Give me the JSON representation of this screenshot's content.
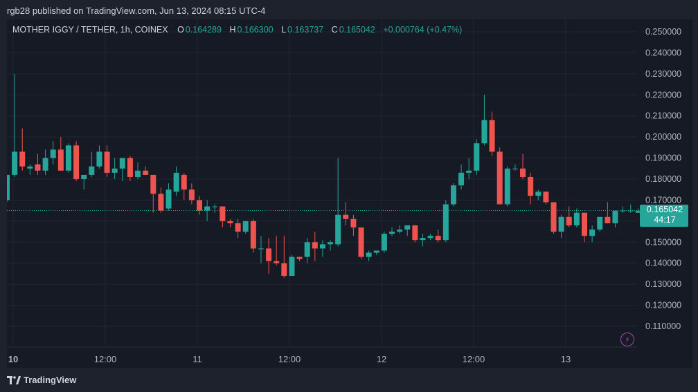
{
  "header": {
    "publisher_text": "rgb28 published on TradingView.com, Jun 13, 2024 08:15 UTC-4"
  },
  "legend": {
    "symbol": "MOTHER IGGY / TETHER, 1h, COINEX",
    "open_label": "O",
    "open": "0.164289",
    "high_label": "H",
    "high": "0.166300",
    "low_label": "L",
    "low": "0.163737",
    "close_label": "C",
    "close": "0.165042",
    "change": "+0.000764 (+0.47%)"
  },
  "price_tag": {
    "price": "0.165042",
    "countdown": "44:17"
  },
  "footer": {
    "brand": "TradingView"
  },
  "colors": {
    "up": "#26a69a",
    "down": "#ef5350",
    "background": "#161a25",
    "grid": "#232734",
    "text": "#d1d4dc",
    "accent": "#ab47bc"
  },
  "icons": {
    "alert": "lightning-bolt-icon",
    "logo": "tradingview-logo-icon"
  },
  "chart_data": {
    "type": "candlestick",
    "title": "MOTHER IGGY / TETHER, 1h, COINEX",
    "ylim": [
      0.1,
      0.255
    ],
    "y_ticks": [
      "0.250000",
      "0.240000",
      "0.230000",
      "0.220000",
      "0.210000",
      "0.200000",
      "0.190000",
      "0.180000",
      "0.170000",
      "0.160000",
      "0.150000",
      "0.140000",
      "0.130000",
      "0.120000",
      "0.110000"
    ],
    "x_ticks": [
      "10",
      "12:00",
      "11",
      "12:00",
      "12",
      "12:00",
      "13"
    ],
    "grid": true,
    "last_price": 0.165042,
    "candles": [
      {
        "o": 0.17,
        "h": 0.182,
        "l": 0.169,
        "c": 0.182
      },
      {
        "o": 0.182,
        "h": 0.23,
        "l": 0.181,
        "c": 0.193
      },
      {
        "o": 0.193,
        "h": 0.204,
        "l": 0.184,
        "c": 0.186
      },
      {
        "o": 0.185,
        "h": 0.187,
        "l": 0.182,
        "c": 0.186
      },
      {
        "o": 0.187,
        "h": 0.192,
        "l": 0.182,
        "c": 0.184
      },
      {
        "o": 0.184,
        "h": 0.194,
        "l": 0.182,
        "c": 0.19
      },
      {
        "o": 0.19,
        "h": 0.198,
        "l": 0.187,
        "c": 0.194
      },
      {
        "o": 0.194,
        "h": 0.2,
        "l": 0.184,
        "c": 0.184
      },
      {
        "o": 0.184,
        "h": 0.197,
        "l": 0.183,
        "c": 0.196
      },
      {
        "o": 0.196,
        "h": 0.198,
        "l": 0.179,
        "c": 0.18
      },
      {
        "o": 0.18,
        "h": 0.182,
        "l": 0.175,
        "c": 0.182
      },
      {
        "o": 0.182,
        "h": 0.193,
        "l": 0.181,
        "c": 0.186
      },
      {
        "o": 0.186,
        "h": 0.196,
        "l": 0.185,
        "c": 0.193
      },
      {
        "o": 0.193,
        "h": 0.196,
        "l": 0.181,
        "c": 0.183
      },
      {
        "o": 0.183,
        "h": 0.19,
        "l": 0.18,
        "c": 0.185
      },
      {
        "o": 0.185,
        "h": 0.19,
        "l": 0.179,
        "c": 0.19
      },
      {
        "o": 0.19,
        "h": 0.191,
        "l": 0.179,
        "c": 0.181
      },
      {
        "o": 0.181,
        "h": 0.188,
        "l": 0.18,
        "c": 0.184
      },
      {
        "o": 0.184,
        "h": 0.186,
        "l": 0.182,
        "c": 0.182
      },
      {
        "o": 0.182,
        "h": 0.182,
        "l": 0.164,
        "c": 0.173
      },
      {
        "o": 0.173,
        "h": 0.176,
        "l": 0.164,
        "c": 0.165
      },
      {
        "o": 0.166,
        "h": 0.178,
        "l": 0.165,
        "c": 0.175
      },
      {
        "o": 0.174,
        "h": 0.186,
        "l": 0.172,
        "c": 0.183
      },
      {
        "o": 0.182,
        "h": 0.183,
        "l": 0.17,
        "c": 0.175
      },
      {
        "o": 0.175,
        "h": 0.178,
        "l": 0.168,
        "c": 0.17
      },
      {
        "o": 0.17,
        "h": 0.172,
        "l": 0.163,
        "c": 0.165
      },
      {
        "o": 0.165,
        "h": 0.17,
        "l": 0.16,
        "c": 0.167
      },
      {
        "o": 0.167,
        "h": 0.168,
        "l": 0.164,
        "c": 0.167
      },
      {
        "o": 0.167,
        "h": 0.167,
        "l": 0.157,
        "c": 0.16
      },
      {
        "o": 0.16,
        "h": 0.161,
        "l": 0.157,
        "c": 0.159
      },
      {
        "o": 0.159,
        "h": 0.161,
        "l": 0.152,
        "c": 0.155
      },
      {
        "o": 0.155,
        "h": 0.16,
        "l": 0.154,
        "c": 0.16
      },
      {
        "o": 0.16,
        "h": 0.161,
        "l": 0.145,
        "c": 0.147
      },
      {
        "o": 0.147,
        "h": 0.153,
        "l": 0.14,
        "c": 0.147
      },
      {
        "o": 0.147,
        "h": 0.152,
        "l": 0.135,
        "c": 0.141
      },
      {
        "o": 0.141,
        "h": 0.153,
        "l": 0.139,
        "c": 0.14
      },
      {
        "o": 0.14,
        "h": 0.153,
        "l": 0.133,
        "c": 0.134
      },
      {
        "o": 0.134,
        "h": 0.144,
        "l": 0.134,
        "c": 0.143
      },
      {
        "o": 0.143,
        "h": 0.143,
        "l": 0.141,
        "c": 0.142
      },
      {
        "o": 0.143,
        "h": 0.152,
        "l": 0.14,
        "c": 0.15
      },
      {
        "o": 0.15,
        "h": 0.155,
        "l": 0.141,
        "c": 0.147
      },
      {
        "o": 0.147,
        "h": 0.151,
        "l": 0.143,
        "c": 0.149
      },
      {
        "o": 0.149,
        "h": 0.151,
        "l": 0.146,
        "c": 0.15
      },
      {
        "o": 0.149,
        "h": 0.19,
        "l": 0.148,
        "c": 0.163
      },
      {
        "o": 0.163,
        "h": 0.169,
        "l": 0.158,
        "c": 0.161
      },
      {
        "o": 0.161,
        "h": 0.163,
        "l": 0.153,
        "c": 0.157
      },
      {
        "o": 0.157,
        "h": 0.157,
        "l": 0.142,
        "c": 0.143
      },
      {
        "o": 0.143,
        "h": 0.146,
        "l": 0.141,
        "c": 0.145
      },
      {
        "o": 0.145,
        "h": 0.146,
        "l": 0.144,
        "c": 0.146
      },
      {
        "o": 0.146,
        "h": 0.155,
        "l": 0.145,
        "c": 0.154
      },
      {
        "o": 0.154,
        "h": 0.157,
        "l": 0.153,
        "c": 0.155
      },
      {
        "o": 0.155,
        "h": 0.158,
        "l": 0.154,
        "c": 0.156
      },
      {
        "o": 0.156,
        "h": 0.158,
        "l": 0.153,
        "c": 0.158
      },
      {
        "o": 0.158,
        "h": 0.158,
        "l": 0.15,
        "c": 0.151
      },
      {
        "o": 0.151,
        "h": 0.154,
        "l": 0.148,
        "c": 0.152
      },
      {
        "o": 0.152,
        "h": 0.154,
        "l": 0.151,
        "c": 0.153
      },
      {
        "o": 0.153,
        "h": 0.156,
        "l": 0.15,
        "c": 0.151
      },
      {
        "o": 0.151,
        "h": 0.17,
        "l": 0.15,
        "c": 0.168
      },
      {
        "o": 0.168,
        "h": 0.178,
        "l": 0.167,
        "c": 0.177
      },
      {
        "o": 0.177,
        "h": 0.187,
        "l": 0.175,
        "c": 0.183
      },
      {
        "o": 0.183,
        "h": 0.19,
        "l": 0.18,
        "c": 0.184
      },
      {
        "o": 0.184,
        "h": 0.199,
        "l": 0.182,
        "c": 0.197
      },
      {
        "o": 0.197,
        "h": 0.22,
        "l": 0.196,
        "c": 0.208
      },
      {
        "o": 0.208,
        "h": 0.212,
        "l": 0.191,
        "c": 0.193
      },
      {
        "o": 0.193,
        "h": 0.195,
        "l": 0.168,
        "c": 0.168
      },
      {
        "o": 0.168,
        "h": 0.186,
        "l": 0.167,
        "c": 0.185
      },
      {
        "o": 0.185,
        "h": 0.187,
        "l": 0.184,
        "c": 0.185
      },
      {
        "o": 0.185,
        "h": 0.192,
        "l": 0.18,
        "c": 0.181
      },
      {
        "o": 0.181,
        "h": 0.183,
        "l": 0.168,
        "c": 0.172
      },
      {
        "o": 0.172,
        "h": 0.175,
        "l": 0.17,
        "c": 0.174
      },
      {
        "o": 0.174,
        "h": 0.174,
        "l": 0.168,
        "c": 0.169
      },
      {
        "o": 0.169,
        "h": 0.169,
        "l": 0.154,
        "c": 0.155
      },
      {
        "o": 0.155,
        "h": 0.163,
        "l": 0.152,
        "c": 0.162
      },
      {
        "o": 0.162,
        "h": 0.167,
        "l": 0.157,
        "c": 0.158
      },
      {
        "o": 0.158,
        "h": 0.166,
        "l": 0.157,
        "c": 0.164
      },
      {
        "o": 0.164,
        "h": 0.164,
        "l": 0.15,
        "c": 0.153
      },
      {
        "o": 0.153,
        "h": 0.158,
        "l": 0.15,
        "c": 0.156
      },
      {
        "o": 0.156,
        "h": 0.162,
        "l": 0.155,
        "c": 0.162
      },
      {
        "o": 0.162,
        "h": 0.169,
        "l": 0.159,
        "c": 0.159
      },
      {
        "o": 0.159,
        "h": 0.165,
        "l": 0.157,
        "c": 0.165
      },
      {
        "o": 0.165,
        "h": 0.167,
        "l": 0.164,
        "c": 0.165
      },
      {
        "o": 0.165,
        "h": 0.168,
        "l": 0.164,
        "c": 0.165
      },
      {
        "o": 0.164,
        "h": 0.166,
        "l": 0.164,
        "c": 0.165
      }
    ]
  }
}
